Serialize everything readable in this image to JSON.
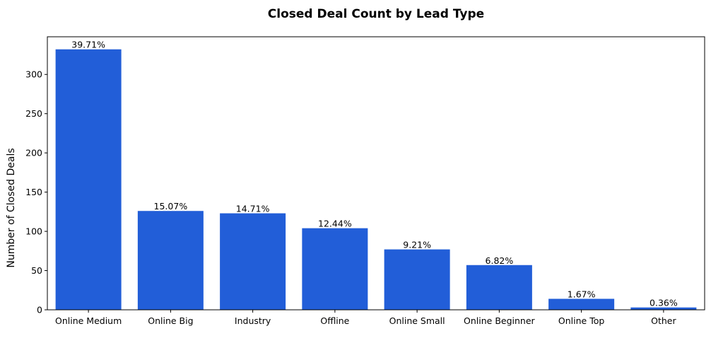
{
  "chart_data": {
    "type": "bar",
    "title": "Closed Deal Count by Lead Type",
    "xlabel": "",
    "ylabel": "Number of Closed Deals",
    "categories": [
      "Online Medium",
      "Online Big",
      "Industry",
      "Offline",
      "Online Small",
      "Online Beginner",
      "Online Top",
      "Other"
    ],
    "values": [
      332,
      126,
      123,
      104,
      77,
      57,
      14,
      3
    ],
    "data_labels": [
      "39.71%",
      "15.07%",
      "14.71%",
      "12.44%",
      "9.21%",
      "6.82%",
      "1.67%",
      "0.36%"
    ],
    "ylim": [
      0,
      348
    ],
    "yticks": [
      0,
      50,
      100,
      150,
      200,
      250,
      300
    ],
    "bar_color": "#225ed8",
    "grid": false,
    "legend": "none"
  }
}
